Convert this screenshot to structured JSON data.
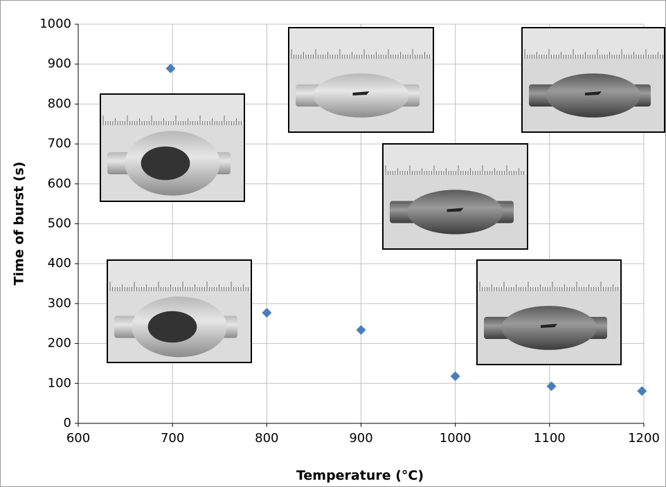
{
  "chart_data": {
    "type": "scatter",
    "x_label": "Temperature (°C)",
    "y_label": "Time of burst (s)",
    "series": [
      {
        "color": "#4a7ebb",
        "x": [
          698,
          800,
          900,
          1000,
          1102,
          1198
        ],
        "values": [
          889,
          277,
          234,
          118,
          93,
          81
        ]
      }
    ],
    "xlim": [
      600,
      1200
    ],
    "xticks": [
      600,
      700,
      800,
      900,
      1000,
      1100,
      1200
    ],
    "ylim": [
      0,
      1000
    ],
    "yticks": [
      0,
      100,
      200,
      300,
      400,
      500,
      600,
      700,
      800,
      900,
      1000
    ],
    "grid": true
  }
}
